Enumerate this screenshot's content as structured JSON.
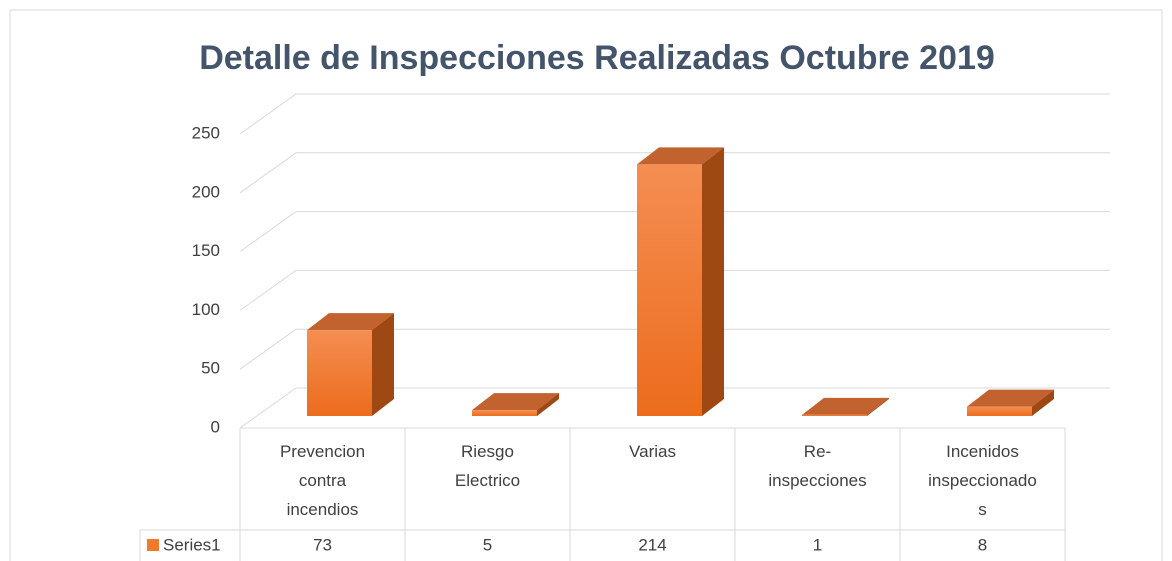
{
  "chart_data": {
    "type": "bar",
    "title": "Detalle de Inspecciones Realizadas Octubre 2019",
    "categories": [
      "Prevencion contra incendios",
      "Riesgo Electrico",
      "Varias",
      "Re-inspecciones",
      "Incenidos inspeccionados"
    ],
    "series": [
      {
        "name": "Series1",
        "color": "#f07a2c",
        "values": [
          73,
          5,
          214,
          1,
          8
        ]
      }
    ],
    "ylim": [
      0,
      250
    ],
    "yticks": [
      0,
      50,
      100,
      150,
      200,
      250
    ],
    "grid": true
  }
}
